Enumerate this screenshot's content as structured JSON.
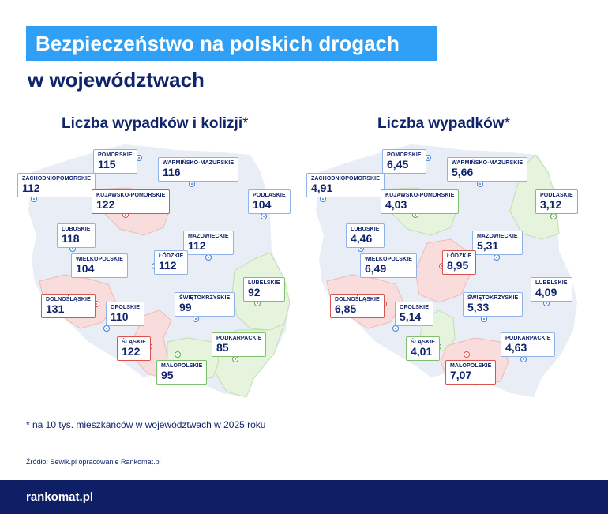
{
  "header": {
    "title": "Bezpieczeństwo na polskich drogach",
    "subtitle": "w województwach"
  },
  "maps": {
    "left": {
      "title": "Liczba wypadków i kolizji",
      "asterisk": "*",
      "regions": {
        "pomorskie": {
          "name": "POMORSKIE",
          "value": "115",
          "highlight": "none"
        },
        "warminsko": {
          "name": "WARMIŃSKO-MAZURSKIE",
          "value": "116",
          "highlight": "none"
        },
        "zachodnio": {
          "name": "ZACHODNIOPOMORSKIE",
          "value": "112",
          "highlight": "none"
        },
        "kujawsko": {
          "name": "KUJAWSKO-POMORSKIE",
          "value": "122",
          "highlight": "red"
        },
        "podlaskie": {
          "name": "PODLASKIE",
          "value": "104",
          "highlight": "none"
        },
        "lubuskie": {
          "name": "LUBUSKIE",
          "value": "118",
          "highlight": "none"
        },
        "mazowieckie": {
          "name": "MAZOWIECKIE",
          "value": "112",
          "highlight": "none"
        },
        "wielkopolskie": {
          "name": "WIELKOPOLSKIE",
          "value": "104",
          "highlight": "none"
        },
        "lodzkie": {
          "name": "ŁÓDZKIE",
          "value": "112",
          "highlight": "none"
        },
        "lubelskie": {
          "name": "LUBELSKIE",
          "value": "92",
          "highlight": "green"
        },
        "dolnoslaskie": {
          "name": "DOLNOŚLĄSKIE",
          "value": "131",
          "highlight": "red"
        },
        "opolskie": {
          "name": "OPOLSKIE",
          "value": "110",
          "highlight": "none"
        },
        "swietokrzyskie": {
          "name": "ŚWIĘTOKRZYSKIE",
          "value": "99",
          "highlight": "none"
        },
        "slaskie": {
          "name": "ŚLĄSKIE",
          "value": "122",
          "highlight": "red"
        },
        "podkarpackie": {
          "name": "PODKARPACKIE",
          "value": "85",
          "highlight": "green"
        },
        "malopolskie": {
          "name": "MAŁOPOLSKIE",
          "value": "95",
          "highlight": "green"
        }
      }
    },
    "right": {
      "title": "Liczba wypadków",
      "asterisk": "*",
      "regions": {
        "pomorskie": {
          "name": "POMORSKIE",
          "value": "6,45",
          "highlight": "none"
        },
        "warminsko": {
          "name": "WARMIŃSKO-MAZURSKIE",
          "value": "5,66",
          "highlight": "none"
        },
        "zachodnio": {
          "name": "ZACHODNIOPOMORSKIE",
          "value": "4,91",
          "highlight": "none"
        },
        "kujawsko": {
          "name": "KUJAWSKO-POMORSKIE",
          "value": "4,03",
          "highlight": "green"
        },
        "podlaskie": {
          "name": "PODLASKIE",
          "value": "3,12",
          "highlight": "green"
        },
        "lubuskie": {
          "name": "LUBUSKIE",
          "value": "4,46",
          "highlight": "none"
        },
        "mazowieckie": {
          "name": "MAZOWIECKIE",
          "value": "5,31",
          "highlight": "none"
        },
        "wielkopolskie": {
          "name": "WIELKOPOLSKIE",
          "value": "6,49",
          "highlight": "none"
        },
        "lodzkie": {
          "name": "ŁÓDZKIE",
          "value": "8,95",
          "highlight": "red"
        },
        "lubelskie": {
          "name": "LUBELSKIE",
          "value": "4,09",
          "highlight": "none"
        },
        "dolnoslaskie": {
          "name": "DOLNOŚLĄSKIE",
          "value": "6,85",
          "highlight": "red"
        },
        "opolskie": {
          "name": "OPOLSKIE",
          "value": "5,14",
          "highlight": "none"
        },
        "swietokrzyskie": {
          "name": "ŚWIĘTOKRZYSKIE",
          "value": "5,33",
          "highlight": "none"
        },
        "slaskie": {
          "name": "ŚLĄSKIE",
          "value": "4,01",
          "highlight": "green"
        },
        "podkarpackie": {
          "name": "PODKARPACKIE",
          "value": "4,63",
          "highlight": "none"
        },
        "malopolskie": {
          "name": "MAŁOPOLSKIE",
          "value": "7,07",
          "highlight": "red"
        }
      }
    }
  },
  "footnote": "* na 10 tys. mieszkańców w województwach w 2025 roku",
  "source": "Źródło: Sewik.pl opracowanie Rankomat.pl",
  "footer": {
    "logo": "rankomat.pl"
  },
  "colors": {
    "title_bg": "#2fa0f5",
    "navy": "#10246b",
    "map_base": "#e9edf5",
    "highlight_red": "#f9dcdc",
    "highlight_green": "#e6f3dd",
    "footer_bg": "#0f1f66"
  }
}
